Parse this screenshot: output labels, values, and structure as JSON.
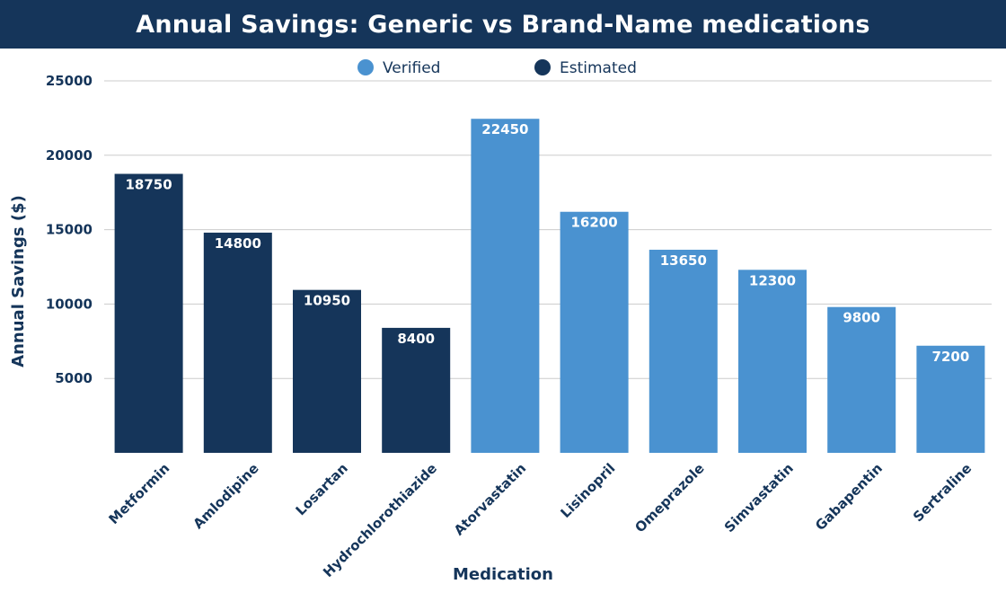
{
  "chart_data": {
    "type": "bar",
    "title": "Annual Savings: Generic vs Brand-Name medications",
    "xlabel": "Medication",
    "ylabel": "Annual Savings ($)",
    "ylim": [
      0,
      25000
    ],
    "yticks": [
      5000,
      10000,
      15000,
      20000,
      25000
    ],
    "grid": true,
    "legend_position": "top",
    "categories": [
      "Metformin",
      "Amlodipine",
      "Losartan",
      "Hydrochlorothiazide",
      "Atorvastatin",
      "Lisinopril",
      "Omeprazole",
      "Simvastatin",
      "Gabapentin",
      "Sertraline"
    ],
    "values": [
      18750,
      14800,
      10950,
      8400,
      22450,
      16200,
      13650,
      12300,
      9800,
      7200
    ],
    "status": [
      "Estimated",
      "Estimated",
      "Estimated",
      "Estimated",
      "Verified",
      "Verified",
      "Verified",
      "Verified",
      "Verified",
      "Verified"
    ],
    "series": [
      {
        "name": "Verified",
        "color": "#4a92d0"
      },
      {
        "name": "Estimated",
        "color": "#15355a"
      }
    ]
  },
  "colors": {
    "title_bar": "#15355a",
    "grid": "#cccccc",
    "text": "#15355a"
  }
}
